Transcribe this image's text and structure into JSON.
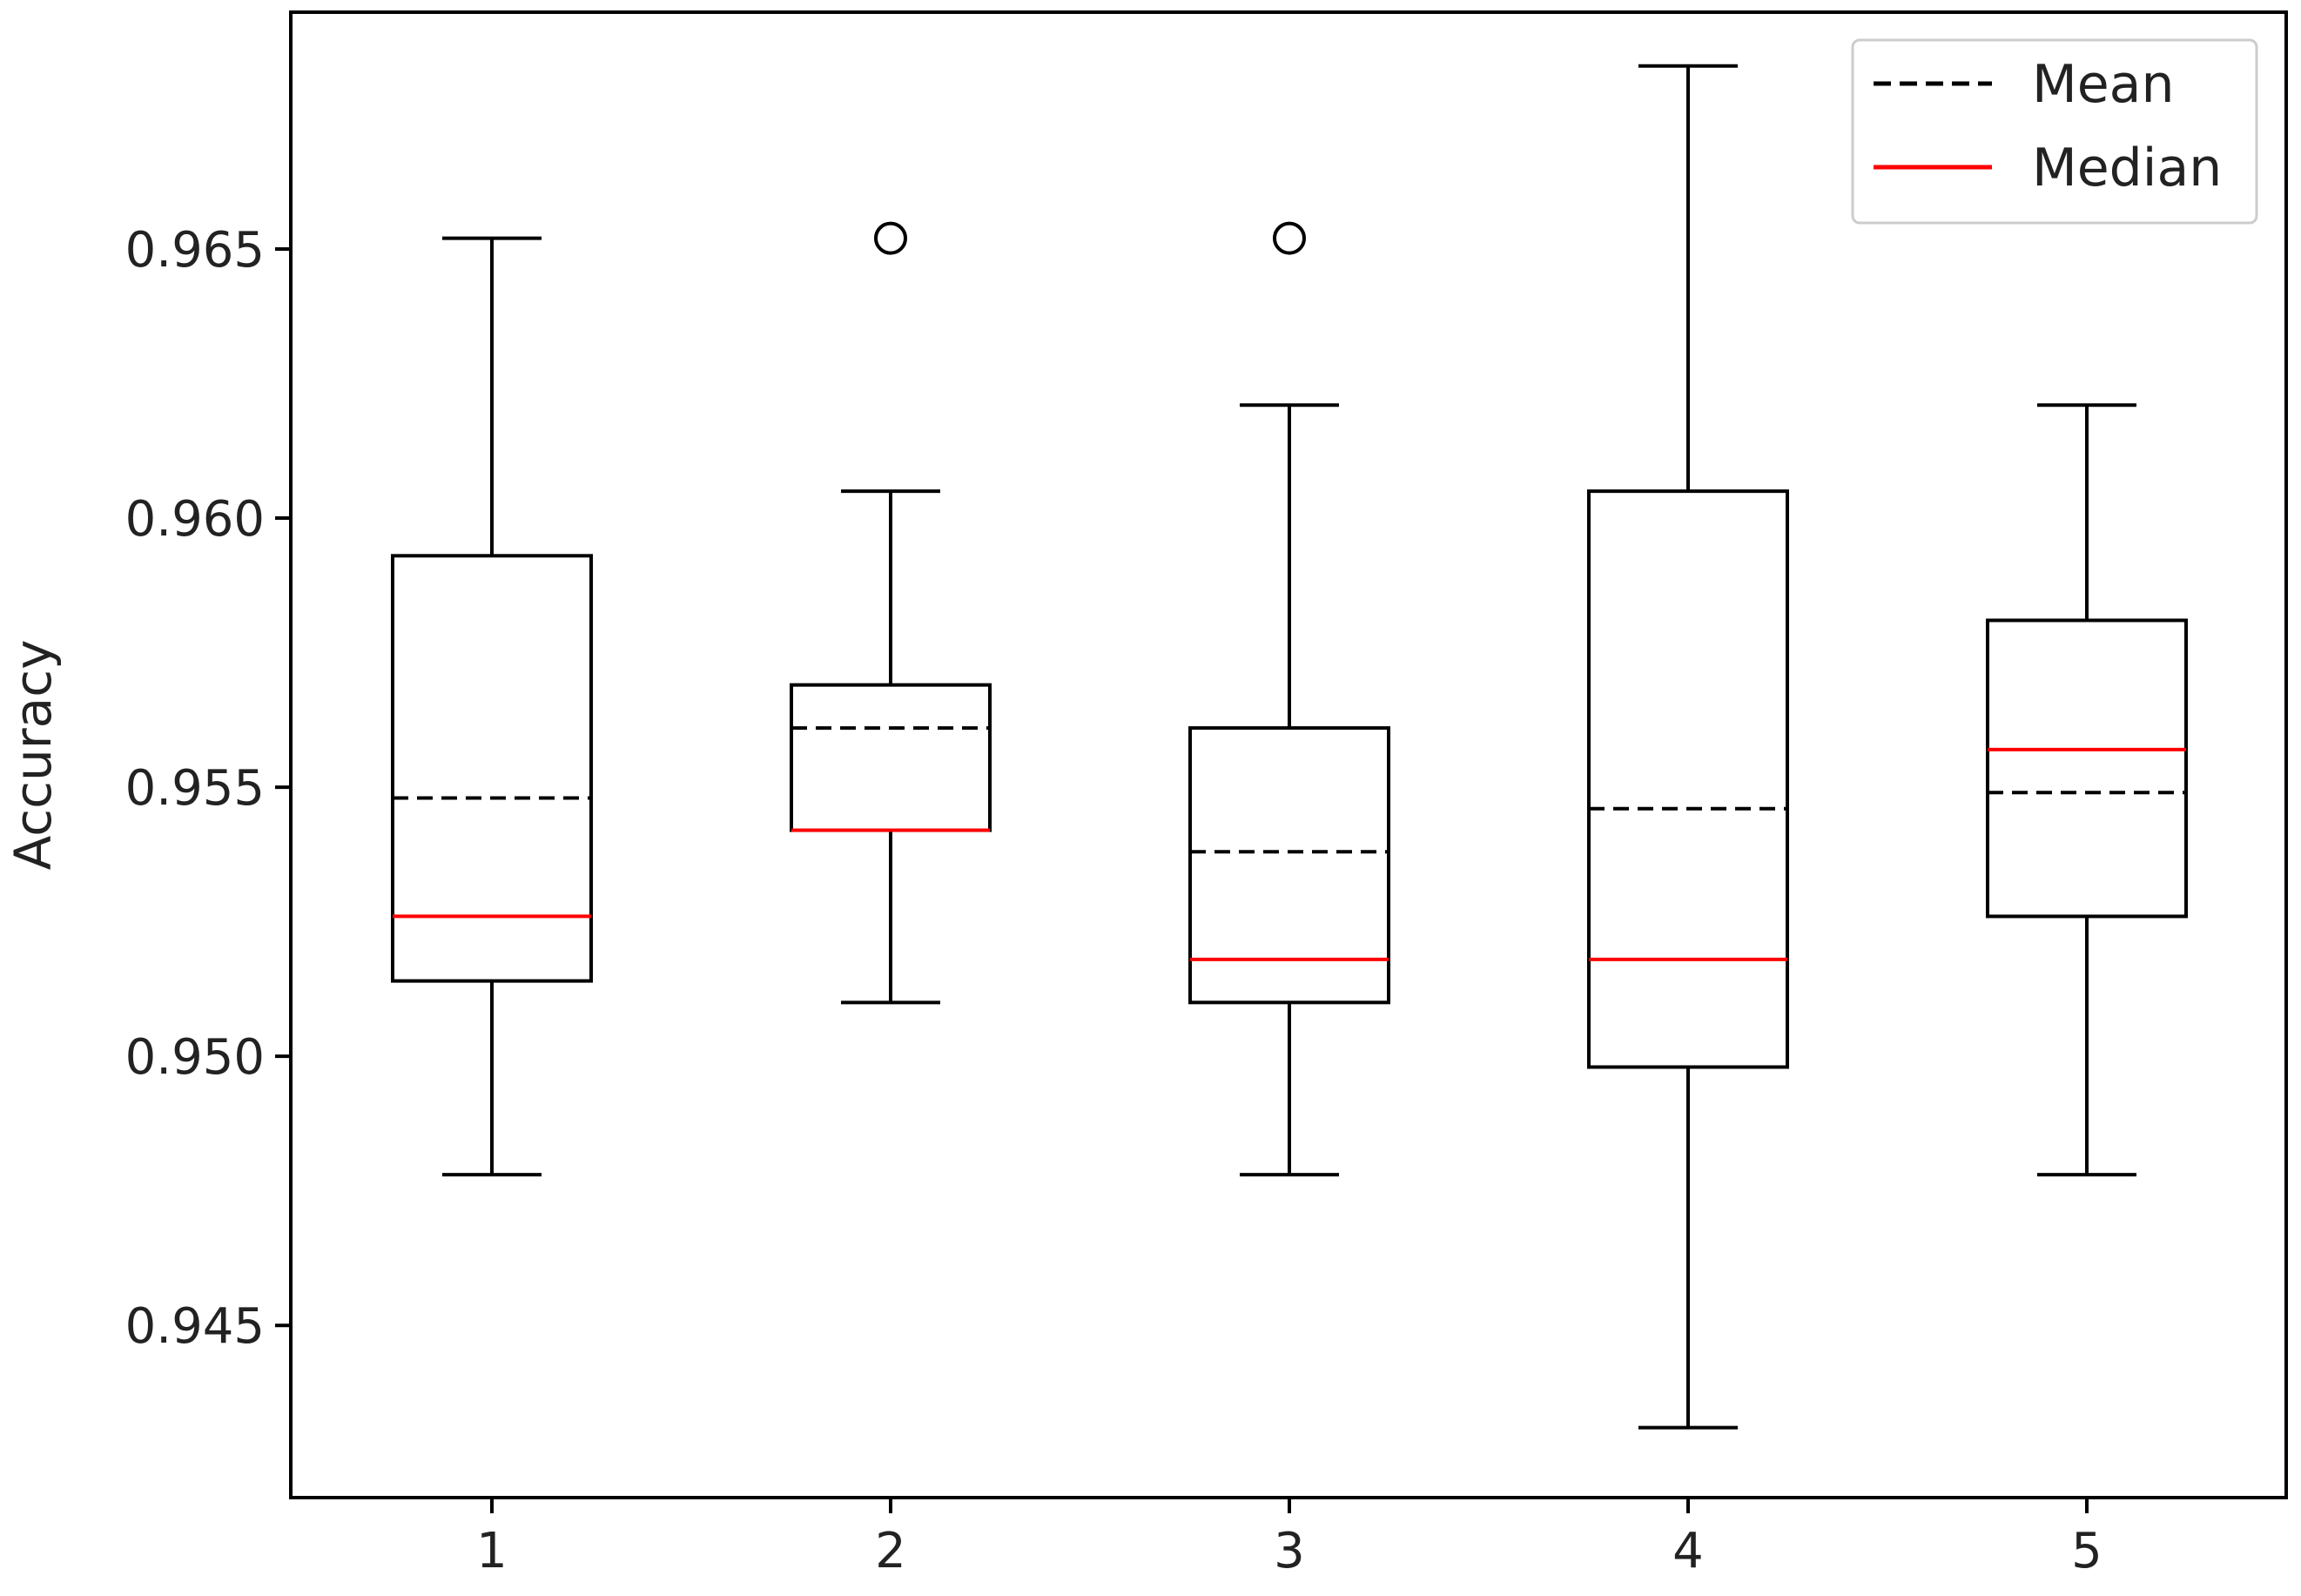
{
  "chart_data": {
    "type": "box",
    "xlabel": "",
    "ylabel": "Accuracy",
    "ylim": [
      0.9418,
      0.9694
    ],
    "yticks": [
      0.945,
      0.95,
      0.955,
      0.96,
      0.965
    ],
    "ytick_labels": [
      "0.945",
      "0.950",
      "0.955",
      "0.960",
      "0.965"
    ],
    "categories": [
      "1",
      "2",
      "3",
      "4",
      "5"
    ],
    "grid": false,
    "legend": {
      "placement": "top-right",
      "entries": [
        {
          "label": "Mean",
          "style": "dashed",
          "color": "#000000"
        },
        {
          "label": "Median",
          "style": "solid",
          "color": "#ff0000"
        }
      ]
    },
    "boxes": [
      {
        "category": "1",
        "whisker_low": 0.9478,
        "q1": 0.9514,
        "median": 0.9526,
        "mean": 0.9548,
        "q3": 0.9593,
        "whisker_high": 0.9652,
        "outliers": []
      },
      {
        "category": "2",
        "whisker_low": 0.951,
        "q1": 0.9542,
        "median": 0.9542,
        "mean": 0.9561,
        "q3": 0.9569,
        "whisker_high": 0.9605,
        "outliers": [
          0.9652
        ]
      },
      {
        "category": "3",
        "whisker_low": 0.9478,
        "q1": 0.951,
        "median": 0.9518,
        "mean": 0.9538,
        "q3": 0.9561,
        "whisker_high": 0.9621,
        "outliers": [
          0.9652
        ]
      },
      {
        "category": "4",
        "whisker_low": 0.9431,
        "q1": 0.9498,
        "median": 0.9518,
        "mean": 0.9546,
        "q3": 0.9605,
        "whisker_high": 0.9684,
        "outliers": []
      },
      {
        "category": "5",
        "whisker_low": 0.9478,
        "q1": 0.9526,
        "median": 0.9557,
        "mean": 0.9549,
        "q3": 0.9581,
        "whisker_high": 0.9621,
        "outliers": []
      }
    ],
    "colors": {
      "box": "#000000",
      "median": "#ff0000",
      "mean": "#000000",
      "outlier": "#000000"
    }
  }
}
